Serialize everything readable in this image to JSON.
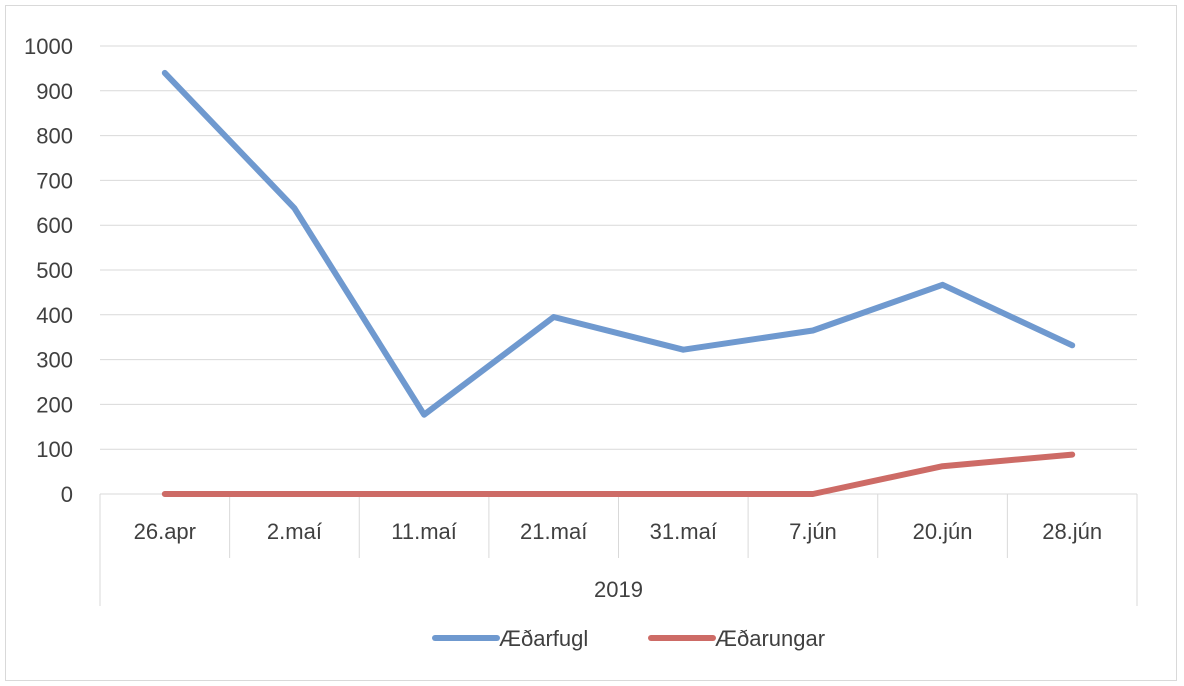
{
  "chart_data": {
    "type": "line",
    "categories": [
      "26.apr",
      "2.maí",
      "11.maí",
      "21.maí",
      "31.maí",
      "7.jún",
      "20.jún",
      "28.jún"
    ],
    "category_group": "2019",
    "series": [
      {
        "name": "Æðarfugl",
        "color": "#6f99cf",
        "values": [
          940,
          638,
          177,
          395,
          322,
          365,
          467,
          332
        ]
      },
      {
        "name": "Æðarungar",
        "color": "#cd6b66",
        "values": [
          0,
          0,
          0,
          0,
          0,
          0,
          62,
          88
        ]
      }
    ],
    "ylim": [
      0,
      1000
    ],
    "yticks": [
      "0",
      "100",
      "200",
      "300",
      "400",
      "500",
      "600",
      "700",
      "800",
      "900",
      "1000"
    ],
    "grid": true,
    "legend_position": "bottom"
  }
}
